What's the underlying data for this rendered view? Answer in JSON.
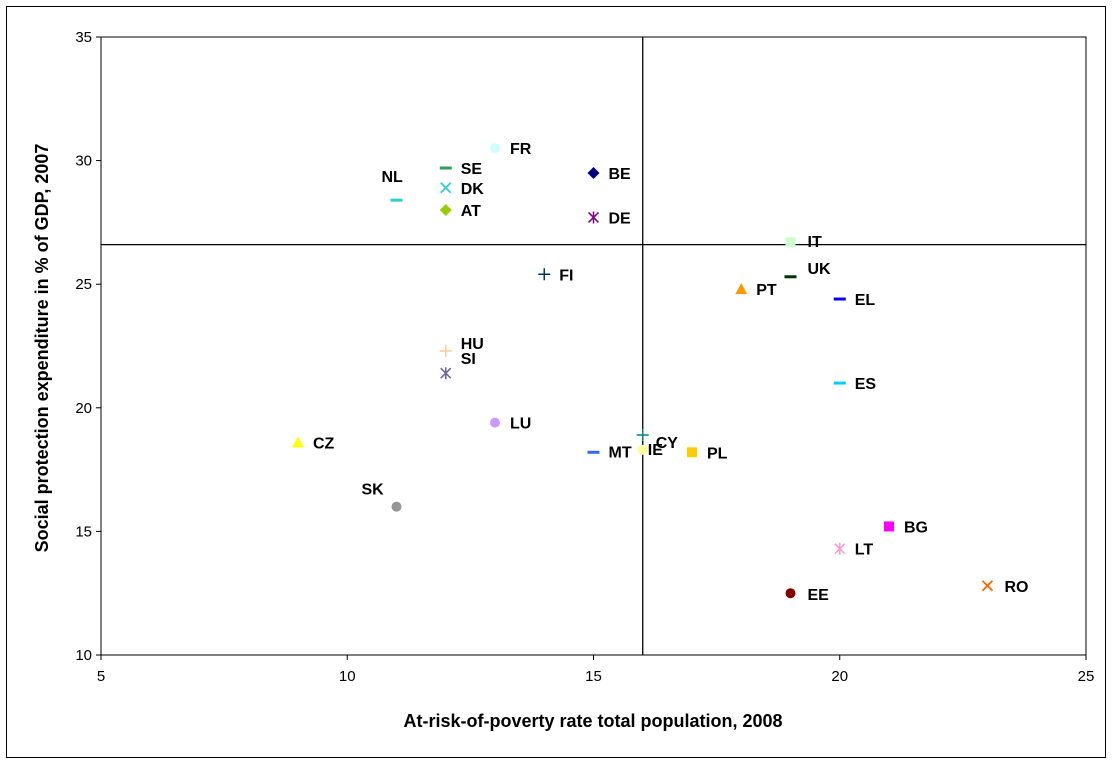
{
  "chart_data": {
    "type": "scatter",
    "xlabel": "At-risk-of-poverty rate total population, 2008",
    "ylabel": "Social protection expenditure in % of GDP, 2007",
    "xlim": [
      5,
      25
    ],
    "ylim": [
      10,
      35
    ],
    "x_ticks": [
      5,
      10,
      15,
      20,
      25
    ],
    "y_ticks": [
      10,
      15,
      20,
      25,
      30,
      35
    ],
    "grid": false,
    "reference_lines": {
      "x": 16,
      "y": 26.6
    },
    "points": [
      {
        "label": "FR",
        "x": 13,
        "y": 30.5,
        "marker": "circle",
        "color": "#ccffff"
      },
      {
        "label": "SE",
        "x": 12,
        "y": 29.7,
        "marker": "dash",
        "color": "#339966"
      },
      {
        "label": "BE",
        "x": 15,
        "y": 29.5,
        "marker": "diamond",
        "color": "#000080"
      },
      {
        "label": "DK",
        "x": 12,
        "y": 28.9,
        "marker": "x",
        "color": "#33cccc"
      },
      {
        "label": "NL",
        "x": 11,
        "y": 28.4,
        "marker": "dash",
        "color": "#33cccc"
      },
      {
        "label": "AT",
        "x": 12,
        "y": 28.0,
        "marker": "diamond",
        "color": "#99cc00"
      },
      {
        "label": "DE",
        "x": 15,
        "y": 27.7,
        "marker": "star",
        "color": "#800080"
      },
      {
        "label": "IT",
        "x": 19,
        "y": 26.7,
        "marker": "square",
        "color": "#ccffcc"
      },
      {
        "label": "UK",
        "x": 19,
        "y": 25.3,
        "marker": "dash",
        "color": "#003300"
      },
      {
        "label": "FI",
        "x": 14,
        "y": 25.4,
        "marker": "plus",
        "color": "#003366"
      },
      {
        "label": "PT",
        "x": 18,
        "y": 24.8,
        "marker": "triangle",
        "color": "#ff9900"
      },
      {
        "label": "EL",
        "x": 20,
        "y": 24.4,
        "marker": "dash",
        "color": "#0000ff"
      },
      {
        "label": "HU",
        "x": 12,
        "y": 22.3,
        "marker": "plus",
        "color": "#ffcc99"
      },
      {
        "label": "SI",
        "x": 12,
        "y": 21.4,
        "marker": "star",
        "color": "#666699"
      },
      {
        "label": "ES",
        "x": 20,
        "y": 21.0,
        "marker": "dash",
        "color": "#00ccff"
      },
      {
        "label": "LU",
        "x": 13,
        "y": 19.4,
        "marker": "circle",
        "color": "#cc99ff"
      },
      {
        "label": "CY",
        "x": 16,
        "y": 18.9,
        "marker": "plus",
        "color": "#008080"
      },
      {
        "label": "CZ",
        "x": 9,
        "y": 18.6,
        "marker": "triangle",
        "color": "#ffff00"
      },
      {
        "label": "MT",
        "x": 15,
        "y": 18.2,
        "marker": "dash",
        "color": "#3366ff"
      },
      {
        "label": "IE",
        "x": 16,
        "y": 18.3,
        "marker": "circle",
        "color": "#ffff99"
      },
      {
        "label": "PL",
        "x": 17,
        "y": 18.2,
        "marker": "square",
        "color": "#ffcc00"
      },
      {
        "label": "SK",
        "x": 11,
        "y": 16.0,
        "marker": "circle",
        "color": "#969696"
      },
      {
        "label": "BG",
        "x": 21,
        "y": 15.2,
        "marker": "square",
        "color": "#ff00ff"
      },
      {
        "label": "LT",
        "x": 20,
        "y": 14.3,
        "marker": "star",
        "color": "#ff99cc"
      },
      {
        "label": "RO",
        "x": 23,
        "y": 12.8,
        "marker": "x",
        "color": "#ff6600"
      },
      {
        "label": "EE",
        "x": 19,
        "y": 12.5,
        "marker": "circle",
        "color": "#800000"
      }
    ]
  }
}
